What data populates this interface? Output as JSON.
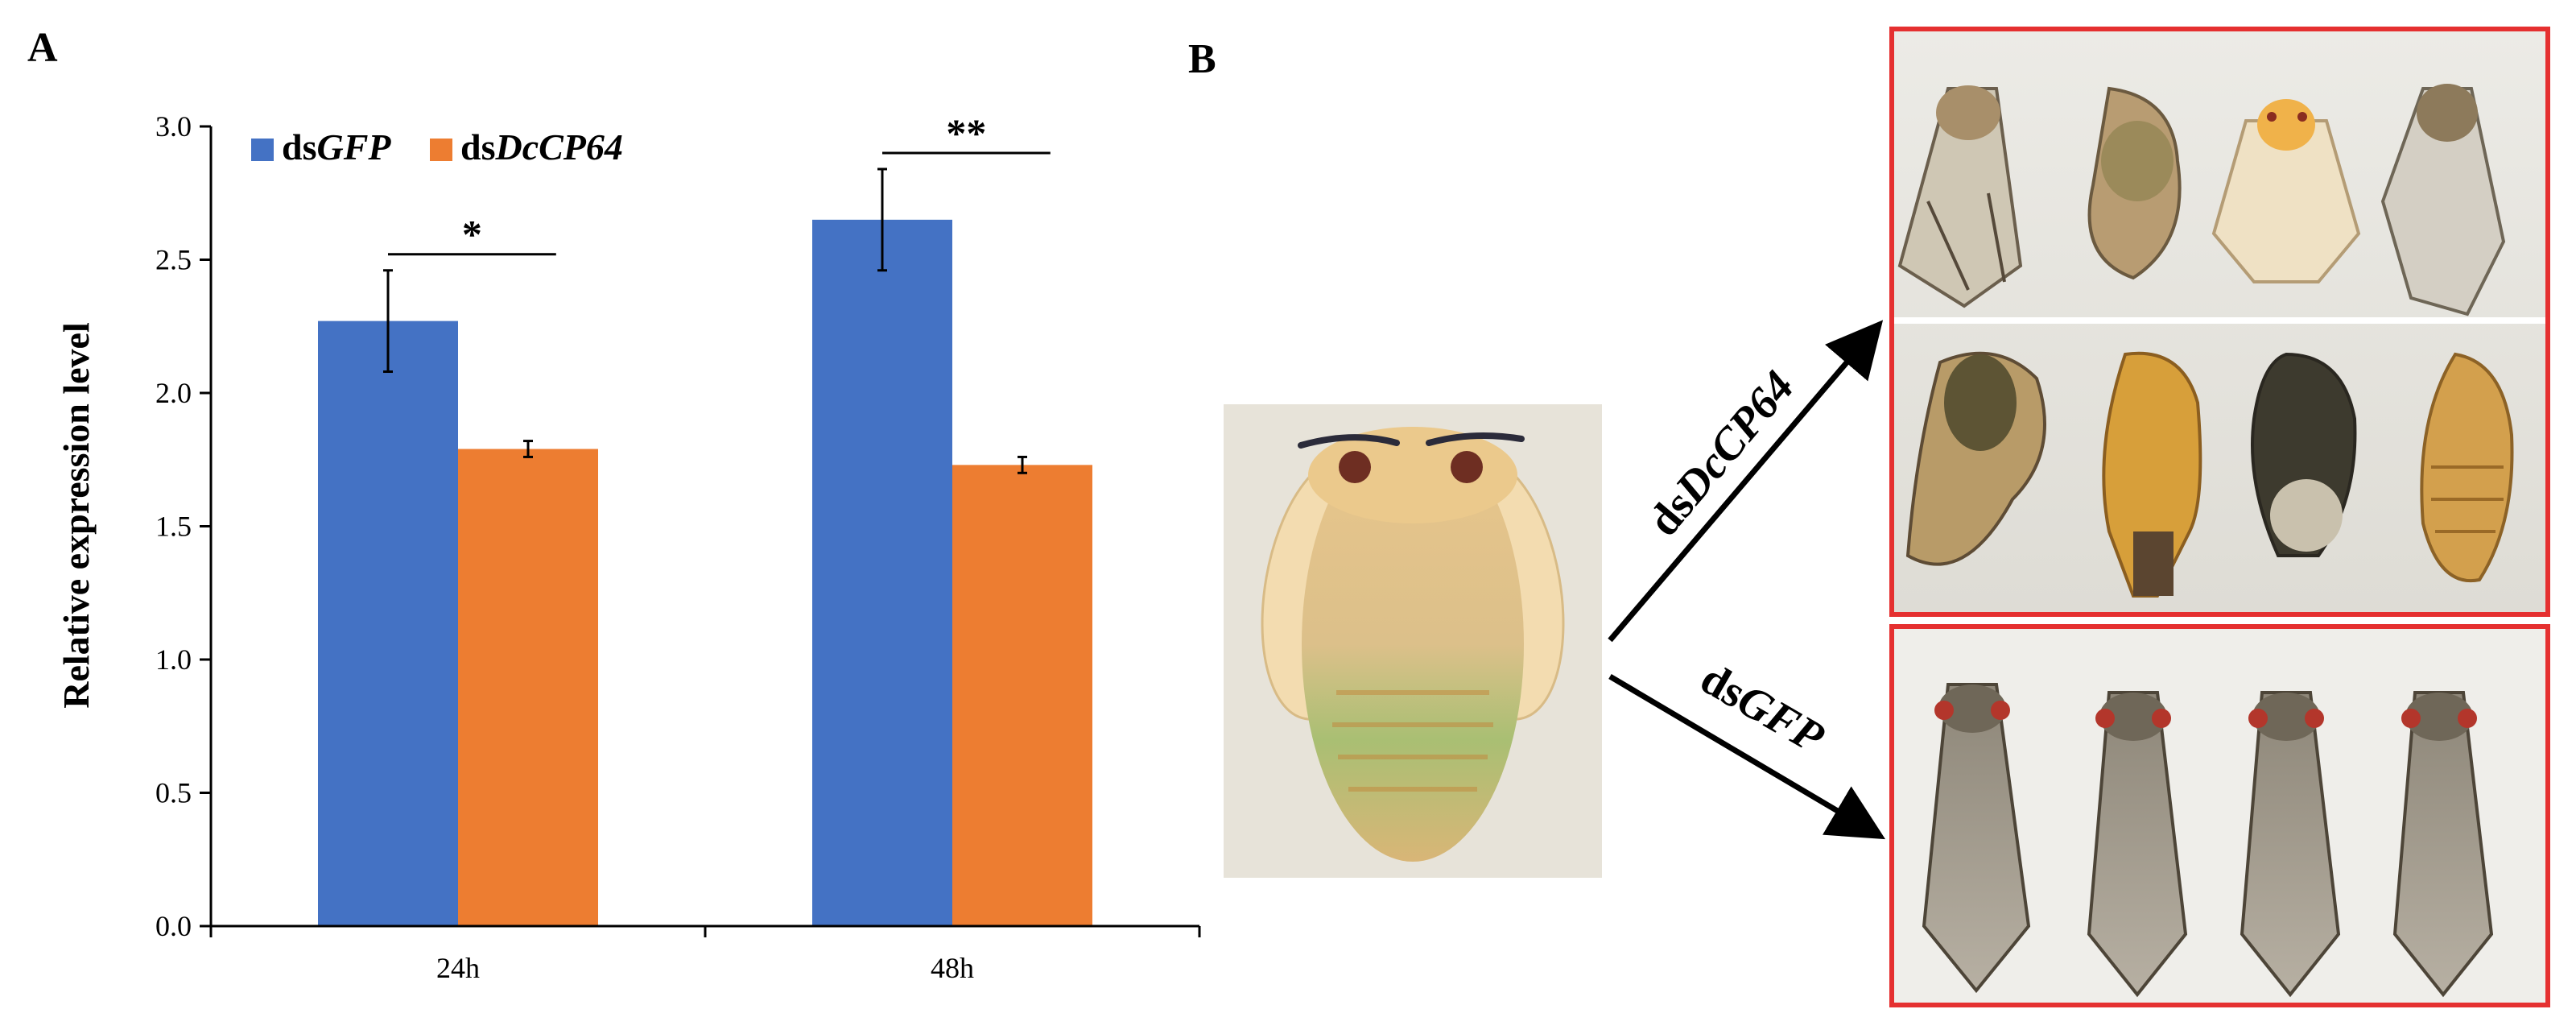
{
  "panels": {
    "a_label": "A",
    "b_label": "B"
  },
  "chart_data": {
    "type": "bar",
    "title": "",
    "xlabel": "",
    "ylabel": "Relative expression level",
    "ylim": [
      0,
      3.0
    ],
    "yticks": [
      "0.0",
      "0.5",
      "1.0",
      "1.5",
      "2.0",
      "2.5",
      "3.0"
    ],
    "categories": [
      "24h",
      "48h"
    ],
    "grid": false,
    "legend_position": "top-left",
    "series": [
      {
        "name_prefix": "ds",
        "name_gene": "GFP",
        "color": "#4472C4",
        "values": [
          2.27,
          2.65
        ],
        "errors": [
          0.19,
          0.19
        ]
      },
      {
        "name_prefix": "ds",
        "name_gene": "DcCP64",
        "color": "#ED7D31",
        "values": [
          1.79,
          1.73
        ],
        "errors": [
          0.03,
          0.03
        ]
      }
    ],
    "significance": [
      "*",
      "**"
    ]
  },
  "figure_b": {
    "arrow_top_prefix": "ds",
    "arrow_top_gene": "DcCP64",
    "arrow_bottom_prefix": "ds",
    "arrow_bottom_gene": "GFP",
    "frame_color": "#E53030",
    "arrow_color": "#000000"
  }
}
